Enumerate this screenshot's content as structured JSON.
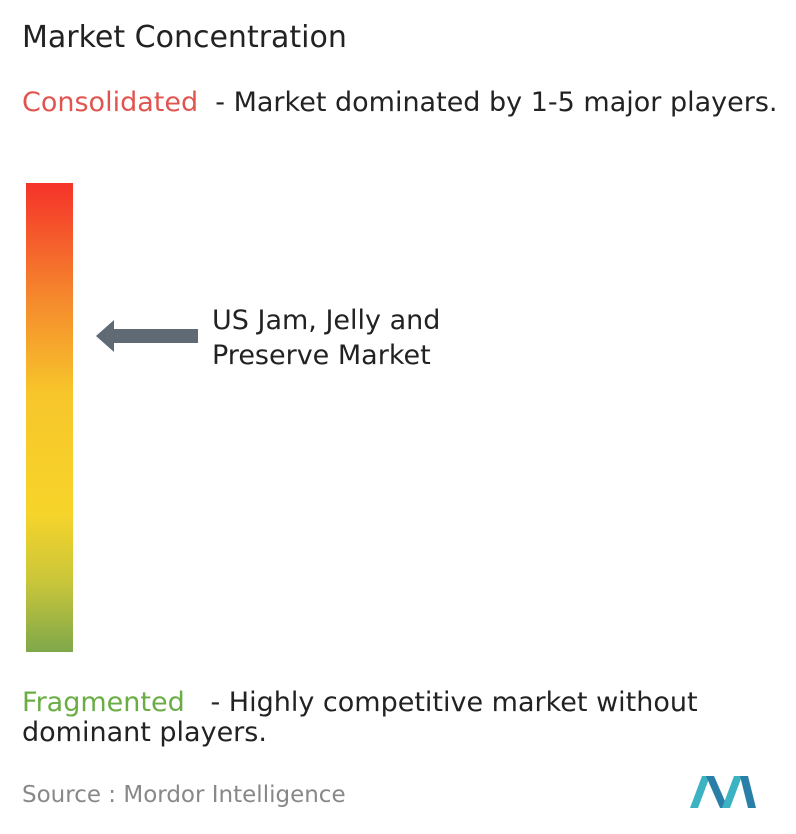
{
  "header": {
    "title": "Market Concentration"
  },
  "consolidated": {
    "label": "Consolidated",
    "description": "- Market dominated by 1-5 major players."
  },
  "marker": {
    "label": "US Jam, Jelly and Preserve Market"
  },
  "fragmented": {
    "label": "Fragmented",
    "description": "- Highly competitive market without dominant players."
  },
  "footer": {
    "source": "Source : Mordor Intelligence"
  }
}
